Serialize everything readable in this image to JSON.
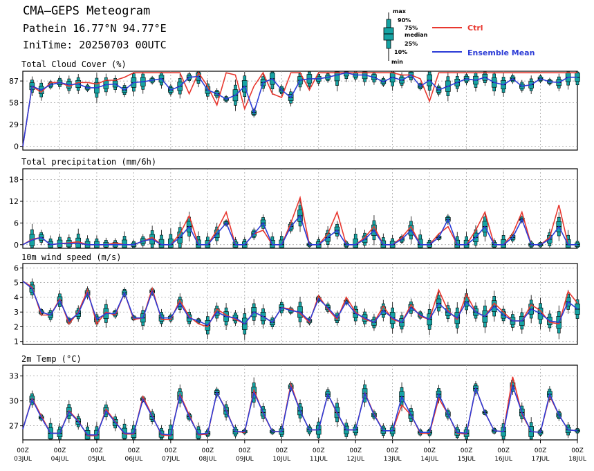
{
  "header": {
    "title": "CMA—GEPS Meteogram",
    "location": "Pathein 16.77°N 94.77°E",
    "init_time": "IniTime: 20250703 00UTC"
  },
  "legend": {
    "box_labels": [
      "max",
      "90%",
      "75%",
      "median",
      "25%",
      "10%",
      "min"
    ],
    "ctrl_label": "Ctrl",
    "mean_label": "Ensemble Mean"
  },
  "colors": {
    "box": "#16a3a3",
    "ctrl": "#e8372f",
    "mean": "#2b3bd6",
    "grid": "#999999"
  },
  "x_axis": {
    "unit": "hours since 03JUL 00Z, 6-hourly",
    "labels": [
      {
        "hour": "00Z",
        "date": "03JUL"
      },
      {
        "hour": "00Z",
        "date": "04JUL"
      },
      {
        "hour": "00Z",
        "date": "05JUL"
      },
      {
        "hour": "00Z",
        "date": "06JUL"
      },
      {
        "hour": "00Z",
        "date": "07JUL"
      },
      {
        "hour": "00Z",
        "date": "08JUL"
      },
      {
        "hour": "00Z",
        "date": "09JUL"
      },
      {
        "hour": "00Z",
        "date": "10JUL"
      },
      {
        "hour": "00Z",
        "date": "11JUL"
      },
      {
        "hour": "00Z",
        "date": "12JUL"
      },
      {
        "hour": "00Z",
        "date": "13JUL"
      },
      {
        "hour": "00Z",
        "date": "14JUL"
      },
      {
        "hour": "00Z",
        "date": "15JUL"
      },
      {
        "hour": "00Z",
        "date": "16JUL"
      },
      {
        "hour": "00Z",
        "date": "17JUL"
      },
      {
        "hour": "00Z",
        "date": "18JUL"
      }
    ]
  },
  "chart_data": [
    {
      "type": "box",
      "title": "Total Cloud Cover (%)",
      "yticks": [
        0,
        29,
        58,
        87
      ],
      "ylim": [
        -5,
        100
      ],
      "ctrl": [
        0,
        80,
        72,
        85,
        85,
        80,
        85,
        85,
        83,
        88,
        88,
        92,
        98,
        98,
        98,
        98,
        98,
        98,
        70,
        98,
        80,
        55,
        98,
        95,
        50,
        80,
        98,
        70,
        65,
        98,
        98,
        75,
        98,
        98,
        98,
        98,
        98,
        98,
        98,
        98,
        98,
        95,
        95,
        90,
        60,
        98,
        98,
        98,
        98,
        98,
        98,
        98,
        98,
        98,
        98,
        98,
        98,
        98,
        98,
        98,
        98
      ],
      "mean": [
        0,
        80,
        75,
        82,
        85,
        82,
        83,
        78,
        78,
        82,
        83,
        75,
        85,
        86,
        88,
        90,
        75,
        80,
        92,
        93,
        75,
        70,
        63,
        68,
        80,
        45,
        85,
        90,
        75,
        65,
        88,
        90,
        90,
        92,
        95,
        98,
        95,
        95,
        92,
        86,
        92,
        88,
        95,
        80,
        88,
        75,
        80,
        85,
        90,
        88,
        92,
        85,
        82,
        90,
        80,
        82,
        90,
        86,
        85,
        92,
        92
      ]
    },
    {
      "type": "box",
      "title": "Total precipitation (mm/6h)",
      "yticks": [
        0,
        6,
        12,
        18
      ],
      "ylim": [
        -1,
        21
      ],
      "ctrl": [
        0,
        1.5,
        2,
        0,
        0.3,
        0.5,
        0.8,
        0,
        0,
        0,
        0.5,
        0,
        0,
        1,
        2,
        0,
        0,
        3,
        8,
        0,
        0,
        4,
        9,
        0,
        0,
        3,
        4,
        0,
        0,
        6,
        13,
        0,
        0,
        3,
        9,
        0,
        0,
        2,
        5,
        0,
        0,
        2,
        5,
        0,
        0,
        3,
        5,
        0,
        0,
        4,
        9,
        0,
        0,
        3,
        9,
        0,
        0,
        2,
        11,
        0,
        0
      ],
      "mean": [
        0,
        1.3,
        2,
        0,
        0.3,
        0.3,
        0.4,
        0,
        0,
        0,
        0,
        0,
        0,
        1,
        1.5,
        0,
        0,
        2,
        5,
        0,
        0,
        3,
        6,
        0,
        0,
        3,
        6,
        0,
        0,
        5,
        8,
        0,
        0,
        2,
        4,
        0,
        0,
        1.5,
        4,
        0,
        0,
        1.5,
        4,
        0,
        0,
        2,
        7,
        0,
        0,
        2,
        5,
        0,
        0,
        2,
        7,
        0,
        0,
        1.5,
        5,
        0,
        0
      ]
    },
    {
      "type": "box",
      "title": "10m wind speed (m/s)",
      "yticks": [
        1,
        2,
        3,
        4,
        5,
        6
      ],
      "ylim": [
        0.8,
        6.3
      ],
      "ctrl": [
        5.1,
        4.7,
        2.8,
        2.8,
        3.9,
        2.2,
        3,
        4.5,
        2.2,
        3,
        2.8,
        4.3,
        2.5,
        2.6,
        4.6,
        2.5,
        2.5,
        3.8,
        2.7,
        2.2,
        2,
        3.2,
        2.8,
        2.5,
        2.2,
        3,
        2.7,
        2.3,
        3.3,
        3.2,
        2.9,
        2.3,
        4.1,
        3.2,
        2.5,
        4,
        3,
        2.5,
        2.3,
        3.4,
        2.5,
        2.3,
        3.5,
        2.7,
        2.5,
        4.5,
        3.1,
        2.5,
        4.2,
        3,
        2.7,
        3.6,
        3,
        2.4,
        2.4,
        3.5,
        3.1,
        2.3,
        2.2,
        4.4,
        3.6
      ],
      "mean": [
        5.1,
        4.6,
        3,
        2.8,
        3.8,
        2.4,
        2.9,
        4.3,
        2.5,
        2.9,
        2.9,
        4.3,
        2.6,
        2.6,
        4.4,
        2.6,
        2.6,
        3.6,
        2.6,
        2.4,
        2.1,
        3,
        2.7,
        2.6,
        2.2,
        3,
        2.7,
        2.3,
        3.3,
        3.1,
        3,
        2.4,
        3.9,
        3.3,
        2.6,
        3.7,
        2.9,
        2.6,
        2.3,
        3.1,
        2.6,
        2.3,
        3.3,
        2.8,
        2.5,
        3.6,
        3,
        2.6,
        3.7,
        3,
        2.7,
        3.4,
        2.8,
        2.4,
        2.4,
        3.2,
        2.9,
        2.4,
        2.3,
        3.7,
        3.2
      ]
    },
    {
      "type": "box",
      "title": "2m Temp (°C)",
      "yticks": [
        27,
        30,
        33
      ],
      "ylim": [
        25.3,
        34.3
      ],
      "ctrl": [
        26.6,
        30.3,
        28.2,
        26.1,
        26.1,
        28.8,
        27.6,
        25.8,
        25.8,
        29,
        27.5,
        26,
        26,
        30.5,
        28.2,
        25.9,
        25.8,
        30.8,
        28.3,
        25.9,
        26,
        31,
        28.9,
        26.3,
        26.2,
        31.3,
        28.5,
        26.3,
        26.3,
        32,
        28.8,
        26.5,
        26.5,
        30.8,
        28.5,
        26.5,
        26.5,
        31,
        28.4,
        26.4,
        26.4,
        29.5,
        28.3,
        26.1,
        26.1,
        30.3,
        28.4,
        26.1,
        26,
        31.5,
        28.6,
        26.4,
        26.3,
        32.9,
        28.4,
        26.3,
        26.2,
        30.6,
        28.3,
        26.5,
        26.4
      ],
      "mean": [
        26.6,
        30.2,
        28,
        26.1,
        26.1,
        28.7,
        27.5,
        25.9,
        25.9,
        28.8,
        27.4,
        26.1,
        26.1,
        30.2,
        28.1,
        26,
        25.9,
        30.6,
        28.1,
        26,
        26.1,
        31,
        28.8,
        26.3,
        26.3,
        31,
        28.6,
        26.3,
        26.3,
        31.7,
        28.8,
        26.5,
        26.5,
        30.8,
        28.6,
        26.5,
        26.5,
        30.9,
        28.3,
        26.4,
        26.4,
        30.5,
        28.3,
        26.2,
        26.2,
        30.8,
        28.4,
        26.2,
        26.1,
        31.5,
        28.6,
        26.4,
        26.3,
        31.8,
        28.6,
        26.3,
        26.2,
        30.8,
        28.3,
        26.5,
        26.4
      ]
    }
  ]
}
